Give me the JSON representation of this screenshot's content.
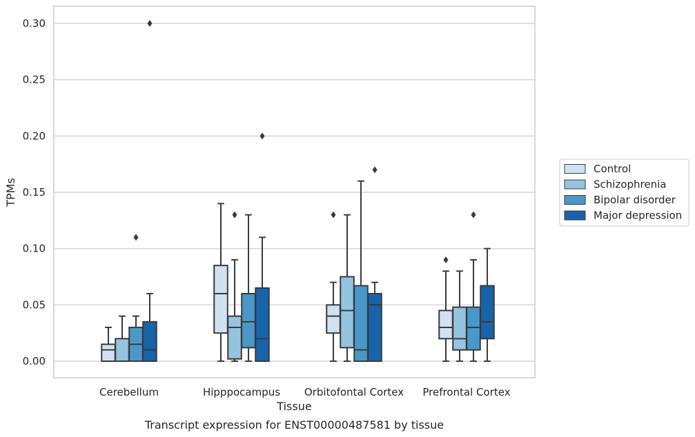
{
  "chart_data": {
    "type": "box",
    "xlabel": "Tissue",
    "ylabel": "TPMs",
    "caption": "Transcript expression for ENST00000487581 by tissue",
    "ylim": [
      -0.015,
      0.315
    ],
    "yticks": [
      "0.00",
      "0.05",
      "0.10",
      "0.15",
      "0.20",
      "0.25",
      "0.30"
    ],
    "grid": true,
    "legend_position": "right",
    "categories": [
      "Cerebellum",
      "Hipppocampus",
      "Orbitofontal Cortex",
      "Prefrontal Cortex"
    ],
    "series": [
      {
        "name": "Control",
        "color": "#d0e1f2",
        "boxes": [
          {
            "whisker_low": 0.0,
            "q1": 0.0,
            "median": 0.01,
            "q3": 0.015,
            "whisker_high": 0.03,
            "outliers": []
          },
          {
            "whisker_low": 0.0,
            "q1": 0.025,
            "median": 0.06,
            "q3": 0.085,
            "whisker_high": 0.14,
            "outliers": []
          },
          {
            "whisker_low": 0.0,
            "q1": 0.025,
            "median": 0.04,
            "q3": 0.05,
            "whisker_high": 0.07,
            "outliers": [
              0.13
            ]
          },
          {
            "whisker_low": 0.0,
            "q1": 0.02,
            "median": 0.03,
            "q3": 0.045,
            "whisker_high": 0.08,
            "outliers": [
              0.09
            ]
          }
        ]
      },
      {
        "name": "Schizophrenia",
        "color": "#94c4df",
        "boxes": [
          {
            "whisker_low": 0.0,
            "q1": 0.0,
            "median": 0.0,
            "q3": 0.02,
            "whisker_high": 0.04,
            "outliers": []
          },
          {
            "whisker_low": 0.0,
            "q1": 0.002,
            "median": 0.03,
            "q3": 0.04,
            "whisker_high": 0.09,
            "outliers": [
              0.13
            ]
          },
          {
            "whisker_low": 0.0,
            "q1": 0.012,
            "median": 0.045,
            "q3": 0.075,
            "whisker_high": 0.13,
            "outliers": []
          },
          {
            "whisker_low": 0.0,
            "q1": 0.01,
            "median": 0.02,
            "q3": 0.048,
            "whisker_high": 0.08,
            "outliers": []
          }
        ]
      },
      {
        "name": "Bipolar disorder",
        "color": "#4a98c9",
        "boxes": [
          {
            "whisker_low": 0.0,
            "q1": 0.0,
            "median": 0.015,
            "q3": 0.03,
            "whisker_high": 0.04,
            "outliers": [
              0.11
            ]
          },
          {
            "whisker_low": 0.0,
            "q1": 0.012,
            "median": 0.035,
            "q3": 0.06,
            "whisker_high": 0.13,
            "outliers": []
          },
          {
            "whisker_low": 0.0,
            "q1": 0.0,
            "median": 0.01,
            "q3": 0.067,
            "whisker_high": 0.16,
            "outliers": []
          },
          {
            "whisker_low": 0.0,
            "q1": 0.01,
            "median": 0.03,
            "q3": 0.048,
            "whisker_high": 0.09,
            "outliers": [
              0.13
            ]
          }
        ]
      },
      {
        "name": "Major depression",
        "color": "#1764ab",
        "boxes": [
          {
            "whisker_low": 0.0,
            "q1": 0.0,
            "median": 0.01,
            "q3": 0.035,
            "whisker_high": 0.06,
            "outliers": [
              0.3
            ]
          },
          {
            "whisker_low": 0.0,
            "q1": 0.0,
            "median": 0.02,
            "q3": 0.065,
            "whisker_high": 0.11,
            "outliers": [
              0.2
            ]
          },
          {
            "whisker_low": 0.0,
            "q1": 0.0,
            "median": 0.05,
            "q3": 0.06,
            "whisker_high": 0.07,
            "outliers": [
              0.17
            ]
          },
          {
            "whisker_low": 0.0,
            "q1": 0.02,
            "median": 0.035,
            "q3": 0.067,
            "whisker_high": 0.1,
            "outliers": []
          }
        ]
      }
    ]
  }
}
